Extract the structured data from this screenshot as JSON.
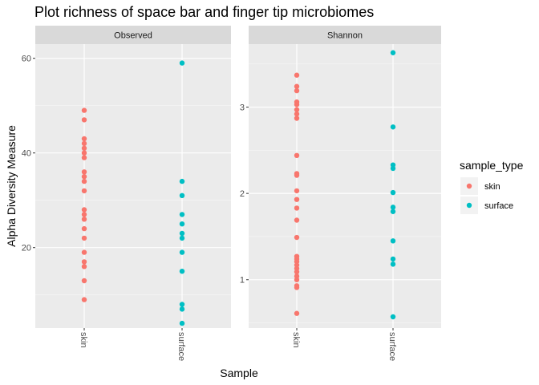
{
  "chart_data": {
    "type": "scatter",
    "title": "Plot richness of space bar and finger tip microbiomes",
    "xlabel": "Sample",
    "ylabel": "Alpha Diversity Measure",
    "categories": [
      "skin",
      "surface"
    ],
    "colors": {
      "skin": "#F8766D",
      "surface": "#00BFC4"
    },
    "legend": {
      "title": "sample_type",
      "position": "right",
      "entries": [
        "skin",
        "surface"
      ]
    },
    "grid": true,
    "panels": [
      {
        "label": "Observed",
        "ylim": [
          3,
          63
        ],
        "yticks": [
          20,
          40,
          60
        ],
        "series": [
          {
            "name": "skin",
            "x": "skin",
            "values": [
              49,
              47,
              43,
              42,
              41,
              40,
              39,
              36,
              35,
              34,
              32,
              28,
              27,
              26,
              24,
              22,
              19,
              17,
              16,
              13,
              9
            ]
          },
          {
            "name": "surface",
            "x": "surface",
            "values": [
              59,
              34,
              31,
              27,
              25,
              23,
              22,
              19,
              15,
              8,
              7,
              4
            ]
          }
        ]
      },
      {
        "label": "Shannon",
        "ylim": [
          0.44,
          3.73
        ],
        "yticks": [
          1,
          2,
          3
        ],
        "series": [
          {
            "name": "skin",
            "x": "skin",
            "values": [
              3.37,
              3.24,
              3.19,
              3.06,
              3.03,
              2.97,
              2.92,
              2.87,
              2.44,
              2.23,
              2.21,
              2.03,
              1.93,
              1.83,
              1.69,
              1.49,
              1.27,
              1.24,
              1.21,
              1.17,
              1.13,
              1.09,
              1.04,
              1.0,
              0.93,
              0.91,
              0.61
            ]
          },
          {
            "name": "surface",
            "x": "surface",
            "values": [
              3.63,
              2.77,
              2.33,
              2.29,
              2.01,
              1.84,
              1.79,
              1.45,
              1.24,
              1.18,
              0.57
            ]
          }
        ]
      }
    ]
  }
}
